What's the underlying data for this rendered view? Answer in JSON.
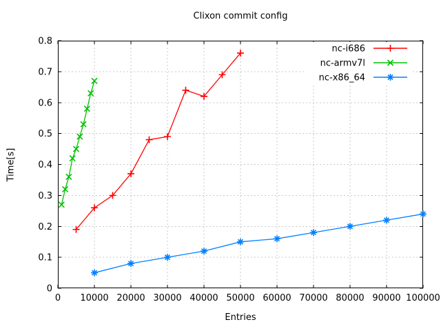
{
  "chart_data": {
    "type": "line",
    "title": "Clixon commit config",
    "xlabel": "Entries",
    "ylabel": "Time[s]",
    "xlim": [
      0,
      100000
    ],
    "ylim": [
      0,
      0.8
    ],
    "x_ticks": [
      0,
      10000,
      20000,
      30000,
      40000,
      50000,
      60000,
      70000,
      80000,
      90000,
      100000
    ],
    "x_tick_labels": [
      "0",
      "10000",
      "20000",
      "30000",
      "40000",
      "50000",
      "60000",
      "70000",
      "80000",
      "90000",
      "100000"
    ],
    "y_ticks": [
      0,
      0.1,
      0.2,
      0.3,
      0.4,
      0.5,
      0.6,
      0.7,
      0.8
    ],
    "y_tick_labels": [
      "0",
      "0.1",
      "0.2",
      "0.3",
      "0.4",
      "0.5",
      "0.6",
      "0.7",
      "0.8"
    ],
    "grid": true,
    "legend_position": "top-right-inside",
    "background_color": "#ffffff",
    "axis_color": "#000000",
    "grid_color": "#c8c8c8",
    "series": [
      {
        "name": "nc-i686",
        "color": "#ff0000",
        "marker": "plus",
        "x": [
          5000,
          10000,
          15000,
          20000,
          25000,
          30000,
          35000,
          40000,
          45000,
          50000
        ],
        "y": [
          0.19,
          0.26,
          0.3,
          0.37,
          0.48,
          0.49,
          0.64,
          0.62,
          0.69,
          0.76
        ]
      },
      {
        "name": "nc-armv7l",
        "color": "#00c000",
        "marker": "cross",
        "x": [
          1000,
          2000,
          3000,
          4000,
          5000,
          6000,
          7000,
          8000,
          9000,
          10000
        ],
        "y": [
          0.27,
          0.32,
          0.36,
          0.42,
          0.45,
          0.49,
          0.53,
          0.58,
          0.63,
          0.67
        ]
      },
      {
        "name": "nc-x86_64",
        "color": "#0080ff",
        "marker": "asterisk",
        "x": [
          10000,
          20000,
          30000,
          40000,
          50000,
          60000,
          70000,
          80000,
          90000,
          100000
        ],
        "y": [
          0.05,
          0.08,
          0.1,
          0.12,
          0.15,
          0.16,
          0.18,
          0.2,
          0.22,
          0.24
        ]
      }
    ]
  }
}
